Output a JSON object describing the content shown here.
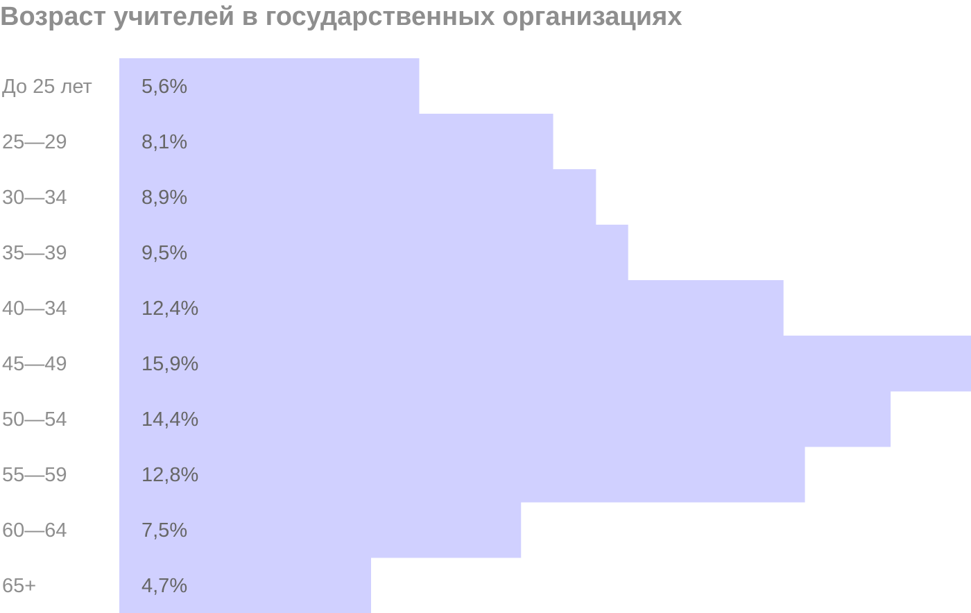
{
  "chart_data": {
    "type": "bar",
    "orientation": "horizontal",
    "title": "Возраст учителей в государственных организациях",
    "categories": [
      "До 25 лет",
      "25—29",
      "30—34",
      "35—39",
      "40—34",
      "45—49",
      "50—54",
      "55—59",
      "60—64",
      "65+"
    ],
    "values": [
      5.6,
      8.1,
      8.9,
      9.5,
      12.4,
      15.9,
      14.4,
      12.8,
      7.5,
      4.7
    ],
    "value_labels": [
      "5,6%",
      "8,1%",
      "8,9%",
      "9,5%",
      "12,4%",
      "15,9%",
      "14,4%",
      "12,8%",
      "7,5%",
      "4,7%"
    ],
    "unit": "%",
    "xlim": [
      0,
      15.9
    ],
    "grid": false,
    "legend": "none",
    "bar_color": "#d0d0ff"
  }
}
